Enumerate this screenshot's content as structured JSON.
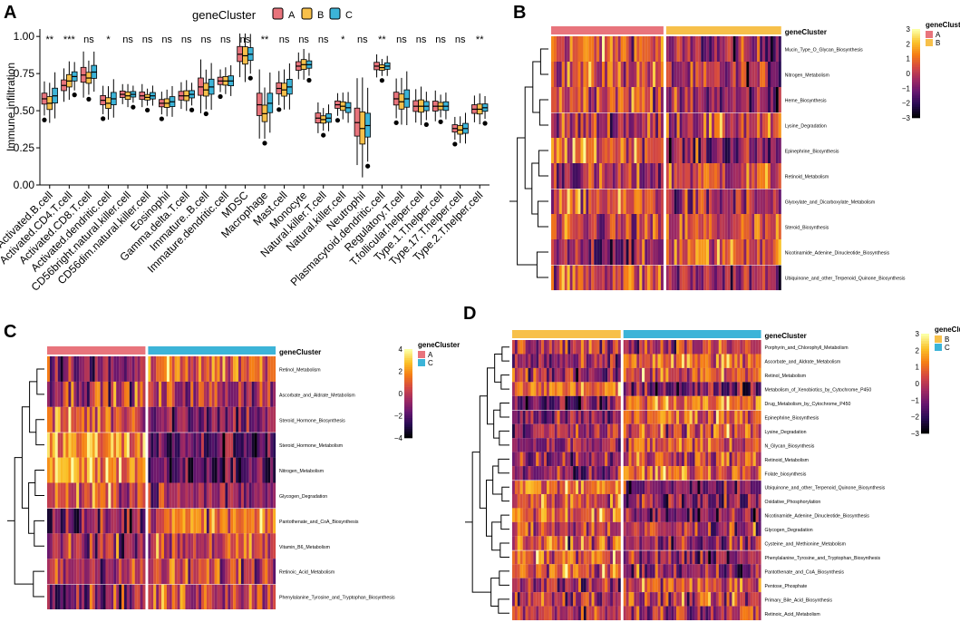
{
  "panels": {
    "A": {
      "label": "A",
      "legend_title": "geneCluster",
      "legend_items": [
        {
          "name": "A",
          "color": "#E8747C"
        },
        {
          "name": "B",
          "color": "#F7C04A"
        },
        {
          "name": "C",
          "color": "#3CB4D8"
        }
      ]
    },
    "B": {
      "label": "B"
    },
    "C": {
      "label": "C"
    },
    "D": {
      "label": "D"
    }
  },
  "chart_data": [
    {
      "type": "box",
      "panel": "A",
      "ylabel": "Immune infiltration",
      "yticks": [
        "0.00",
        "0.25",
        "0.50",
        "0.75",
        "1.00"
      ],
      "ylim": [
        0,
        1.05
      ],
      "groups": [
        "A",
        "B",
        "C"
      ],
      "categories": [
        {
          "name": "Activated.B.cell",
          "sig": "**",
          "medians": [
            0.58,
            0.55,
            0.6
          ]
        },
        {
          "name": "Activated.CD4.T.cell",
          "sig": "***",
          "medians": [
            0.67,
            0.7,
            0.73
          ]
        },
        {
          "name": "Activated.CD8.T.cell",
          "sig": "ns",
          "medians": [
            0.74,
            0.72,
            0.76
          ]
        },
        {
          "name": "Activated.dendritic.cell",
          "sig": "*",
          "medians": [
            0.57,
            0.55,
            0.58
          ]
        },
        {
          "name": "CD56bright.natural.killer.cell",
          "sig": "ns",
          "medians": [
            0.61,
            0.6,
            0.61
          ]
        },
        {
          "name": "CD56dim.natural.killer.cell",
          "sig": "ns",
          "medians": [
            0.6,
            0.59,
            0.6
          ]
        },
        {
          "name": "Eosinophil",
          "sig": "ns",
          "medians": [
            0.55,
            0.55,
            0.56
          ]
        },
        {
          "name": "Gamma.delta.T.cell",
          "sig": "ns",
          "medians": [
            0.6,
            0.6,
            0.61
          ]
        },
        {
          "name": "Immature..B.cell",
          "sig": "ns",
          "medians": [
            0.66,
            0.64,
            0.66
          ]
        },
        {
          "name": "Immature.dendritic.cell",
          "sig": "ns",
          "medians": [
            0.7,
            0.7,
            0.7
          ]
        },
        {
          "name": "MDSC",
          "sig": "ns",
          "medians": [
            0.88,
            0.87,
            0.88
          ]
        },
        {
          "name": "Macrophage",
          "sig": "**",
          "medians": [
            0.54,
            0.48,
            0.55
          ]
        },
        {
          "name": "Mast.cell",
          "sig": "ns",
          "medians": [
            0.65,
            0.64,
            0.66
          ]
        },
        {
          "name": "Monocyte",
          "sig": "ns",
          "medians": [
            0.8,
            0.81,
            0.81
          ]
        },
        {
          "name": "Natural.killer.T.cell",
          "sig": "ns",
          "medians": [
            0.45,
            0.44,
            0.45
          ]
        },
        {
          "name": "Natural.killer.cell",
          "sig": "*",
          "medians": [
            0.54,
            0.53,
            0.52
          ]
        },
        {
          "name": "Neutrophil",
          "sig": "ns",
          "medians": [
            0.42,
            0.38,
            0.4
          ]
        },
        {
          "name": "Plasmacytoid.dendritic.cell",
          "sig": "**",
          "medians": [
            0.8,
            0.79,
            0.8
          ]
        },
        {
          "name": "Regulatory.T.cell",
          "sig": "ns",
          "medians": [
            0.58,
            0.56,
            0.58
          ]
        },
        {
          "name": "T.follicular.helper.cell",
          "sig": "ns",
          "medians": [
            0.53,
            0.53,
            0.53
          ]
        },
        {
          "name": "Type.1.T.helper.cell",
          "sig": "ns",
          "medians": [
            0.53,
            0.53,
            0.53
          ]
        },
        {
          "name": "Type.17.T.helper.cell",
          "sig": "ns",
          "medians": [
            0.38,
            0.37,
            0.38
          ]
        },
        {
          "name": "Type.2.T.helper.cell",
          "sig": "**",
          "medians": [
            0.51,
            0.51,
            0.52
          ]
        }
      ]
    },
    {
      "type": "heatmap",
      "panel": "B",
      "annotation_title": "geneCluster",
      "groups": [
        {
          "name": "A",
          "color": "#E8747C"
        },
        {
          "name": "B",
          "color": "#F7C04A"
        }
      ],
      "legend_title": "geneCluster",
      "colorbar_ticks": [
        3,
        2,
        1,
        0,
        -1,
        -2,
        -3
      ],
      "rows": [
        "Mucin_Type_O_Glycan_Biosynthesis",
        "Nitrogen_Metabolism",
        "Heme_Biosynthesis",
        "Lysine_Degradation",
        "Epinephrine_Biosynthesis",
        "Retinoid_Metabolism",
        "Glyoxylate_and_Dicarboxylate_Metabolism",
        "Steroid_Biosynthesis",
        "Nicotinamide_Adenine_Dinucleotide_Biosynthesis",
        "Ubiquinone_and_other_Terpenoid_Quinone_Biosynthesis"
      ]
    },
    {
      "type": "heatmap",
      "panel": "C",
      "annotation_title": "geneCluster",
      "groups": [
        {
          "name": "A",
          "color": "#E8747C"
        },
        {
          "name": "C",
          "color": "#3CB4D8"
        }
      ],
      "legend_title": "geneCluster",
      "colorbar_ticks": [
        4,
        2,
        0,
        -2,
        -4
      ],
      "rows": [
        "Retinol_Metabolism",
        "Ascorbate_and_Aldrate_Metabolism",
        "Steroid_Hormone_Biosynthesis",
        "Steroid_Hormone_Metabolism",
        "Nitrogen_Metabolism",
        "Glycogen_Degradation",
        "Pantothenate_and_CoA_Biosynthesis",
        "Vitamin_B6_Metabolism",
        "Retinoic_Acid_Metabolism",
        "Phenylalanine_Tyrosine_and_Tryptophan_Biosynthesis"
      ]
    },
    {
      "type": "heatmap",
      "panel": "D",
      "annotation_title": "geneCluster",
      "groups": [
        {
          "name": "B",
          "color": "#F7C04A"
        },
        {
          "name": "C",
          "color": "#3CB4D8"
        }
      ],
      "legend_title": "geneCluster",
      "colorbar_ticks": [
        3,
        2,
        1,
        0,
        -1,
        -2,
        -3
      ],
      "rows": [
        "Porphyrin_and_Chlorophyll_Metabolism",
        "Ascorbate_and_Aldrate_Metabolism",
        "Retinol_Metabolism",
        "Metabolism_of_Xenobiotics_by_Cytochrome_P450",
        "Drug_Metabolism_by_Cytochrome_P450",
        "Epinephrine_Biosynthesis",
        "Lysine_Degradation",
        "N_Glycan_Biosynthesis",
        "Retinoid_Metabolism",
        "Folate_biosynthesis",
        "Ubiquinone_and_other_Terpenoid_Quinone_Biosynthesis",
        "Oxidative_Phosphorylation",
        "Nicotinamide_Adenine_Dinucleotide_Biosynthesis",
        "Glycogen_Degradation",
        "Cysteine_and_Methionine_Metabolism",
        "Phenylalanine_Tyrosine_and_Tryptophan_Biosynthesis",
        "Pantothenate_and_CoA_Biosynthesis",
        "Pentose_Phosphate",
        "Primary_Bile_Acid_Biosynthesis",
        "Retinoic_Acid_Metabolism"
      ]
    }
  ]
}
